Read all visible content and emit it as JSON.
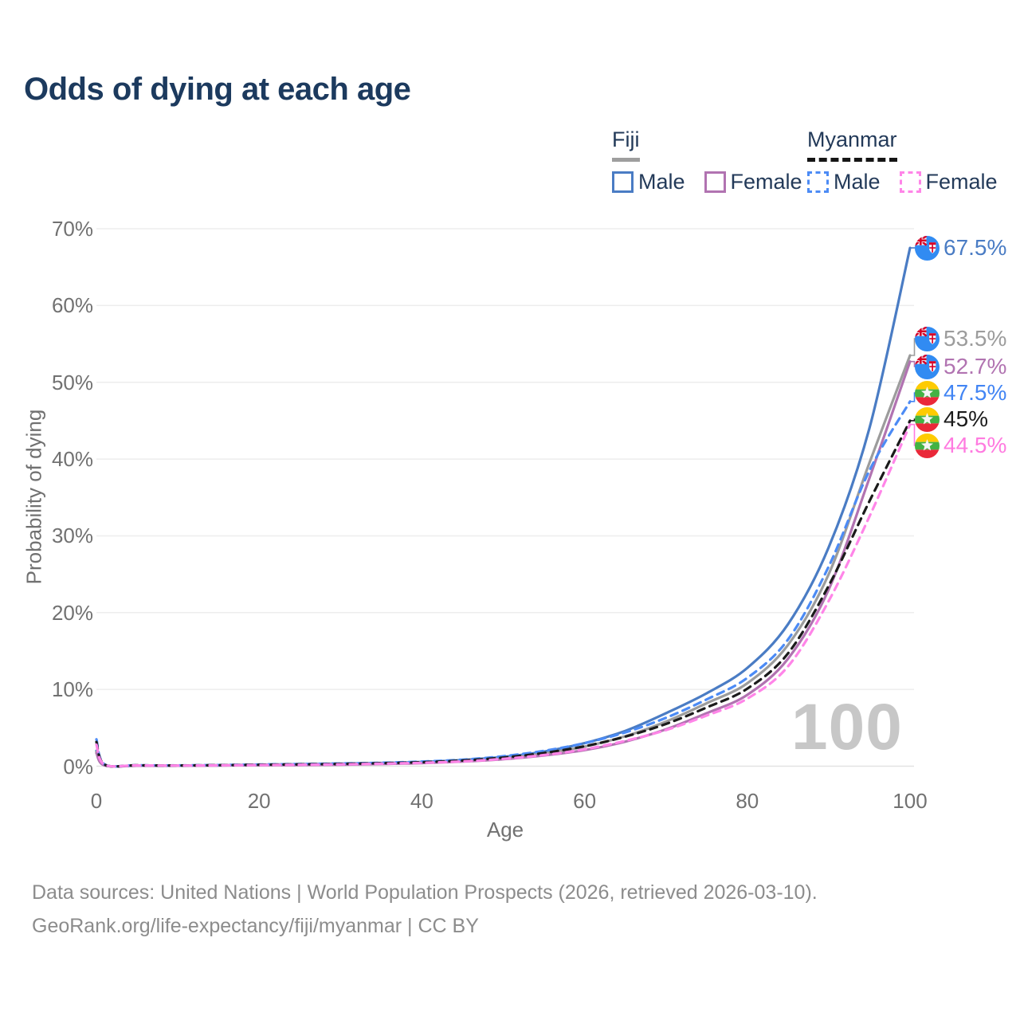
{
  "title": "Odds of dying at each age",
  "legend": {
    "groups": [
      {
        "name": "Fiji",
        "line_style": "solid",
        "underline_color": "#9e9e9e",
        "items": [
          {
            "label": "Male",
            "color": "#4a7cc4"
          },
          {
            "label": "Female",
            "color": "#b173b1"
          }
        ]
      },
      {
        "name": "Myanmar",
        "line_style": "dashed",
        "underline_color": "#151515",
        "items": [
          {
            "label": "Male",
            "color": "#4c8bf5"
          },
          {
            "label": "Female",
            "color": "#ff85e8"
          }
        ]
      }
    ]
  },
  "axes": {
    "y_label": "Probability of dying",
    "x_label": "Age",
    "y_ticks": [
      "0%",
      "10%",
      "20%",
      "30%",
      "40%",
      "50%",
      "60%",
      "70%"
    ],
    "x_ticks": [
      "0",
      "20",
      "40",
      "60",
      "80",
      "100"
    ]
  },
  "watermark": "100",
  "end_labels": [
    {
      "series": "fiji_male",
      "flag": "fiji-flag-icon",
      "text": "67.5%",
      "value": 67.5,
      "color": "#4a7cc4"
    },
    {
      "series": "fiji_both",
      "flag": "fiji-flag-icon",
      "text": "53.5%",
      "value": 53.5,
      "color": "#9c9c9c"
    },
    {
      "series": "fiji_female",
      "flag": "fiji-flag-icon",
      "text": "52.7%",
      "value": 52.7,
      "color": "#b173b1"
    },
    {
      "series": "myanmar_male",
      "flag": "myanmar-flag-icon",
      "text": "47.5%",
      "value": 47.5,
      "color": "#4285f4"
    },
    {
      "series": "myanmar_both",
      "flag": "myanmar-flag-icon",
      "text": "45%",
      "value": 45.0,
      "color": "#1b1b1b"
    },
    {
      "series": "myanmar_female",
      "flag": "myanmar-flag-icon",
      "text": "44.5%",
      "value": 44.5,
      "color": "#ff7be0"
    }
  ],
  "footer": {
    "line1": "Data sources: United Nations | World Population Prospects (2026, retrieved 2026-03-10).",
    "line2": "GeoRank.org/life-expectancy/fiji/myanmar | CC BY"
  },
  "chart_data": {
    "type": "line",
    "title": "Odds of dying at each age",
    "xlabel": "Age",
    "ylabel": "Probability of dying",
    "xlim": [
      0,
      100
    ],
    "ylim": [
      0,
      70
    ],
    "y_unit": "%",
    "grid": "horizontal",
    "legend_position": "top-right",
    "series": [
      {
        "name": "Fiji Male",
        "country": "Fiji",
        "sex": "male",
        "style": "solid",
        "color": "#4a7cc4",
        "points": [
          [
            0,
            2.0
          ],
          [
            1,
            0.12
          ],
          [
            5,
            0.08
          ],
          [
            10,
            0.08
          ],
          [
            15,
            0.12
          ],
          [
            20,
            0.2
          ],
          [
            25,
            0.25
          ],
          [
            30,
            0.32
          ],
          [
            35,
            0.42
          ],
          [
            40,
            0.55
          ],
          [
            45,
            0.8
          ],
          [
            50,
            1.2
          ],
          [
            55,
            1.9
          ],
          [
            60,
            3.0
          ],
          [
            65,
            4.6
          ],
          [
            70,
            6.9
          ],
          [
            75,
            9.5
          ],
          [
            80,
            12.8
          ],
          [
            85,
            18.5
          ],
          [
            90,
            28.5
          ],
          [
            95,
            44.0
          ],
          [
            100,
            67.5
          ]
        ]
      },
      {
        "name": "Fiji Both sexes",
        "country": "Fiji",
        "sex": "both",
        "style": "solid",
        "color": "#9c9c9c",
        "points": [
          [
            0,
            1.85
          ],
          [
            1,
            0.11
          ],
          [
            5,
            0.07
          ],
          [
            10,
            0.07
          ],
          [
            15,
            0.1
          ],
          [
            20,
            0.16
          ],
          [
            25,
            0.2
          ],
          [
            30,
            0.26
          ],
          [
            35,
            0.35
          ],
          [
            40,
            0.48
          ],
          [
            45,
            0.7
          ],
          [
            50,
            1.05
          ],
          [
            55,
            1.65
          ],
          [
            60,
            2.55
          ],
          [
            65,
            3.9
          ],
          [
            70,
            5.8
          ],
          [
            75,
            8.2
          ],
          [
            80,
            10.8
          ],
          [
            85,
            15.8
          ],
          [
            90,
            25.0
          ],
          [
            95,
            39.5
          ],
          [
            100,
            53.5
          ]
        ]
      },
      {
        "name": "Fiji Female",
        "country": "Fiji",
        "sex": "female",
        "style": "solid",
        "color": "#b173b1",
        "points": [
          [
            0,
            1.7
          ],
          [
            1,
            0.1
          ],
          [
            5,
            0.06
          ],
          [
            10,
            0.06
          ],
          [
            15,
            0.08
          ],
          [
            20,
            0.12
          ],
          [
            25,
            0.15
          ],
          [
            30,
            0.2
          ],
          [
            35,
            0.28
          ],
          [
            40,
            0.4
          ],
          [
            45,
            0.6
          ],
          [
            50,
            0.9
          ],
          [
            55,
            1.4
          ],
          [
            60,
            2.1
          ],
          [
            65,
            3.2
          ],
          [
            70,
            4.8
          ],
          [
            75,
            6.9
          ],
          [
            80,
            9.3
          ],
          [
            85,
            14.0
          ],
          [
            90,
            23.0
          ],
          [
            95,
            37.5
          ],
          [
            100,
            52.7
          ]
        ]
      },
      {
        "name": "Myanmar Male",
        "country": "Myanmar",
        "sex": "male",
        "style": "dashed",
        "color": "#4c8bf5",
        "points": [
          [
            0,
            3.5
          ],
          [
            1,
            0.25
          ],
          [
            5,
            0.12
          ],
          [
            10,
            0.1
          ],
          [
            15,
            0.15
          ],
          [
            20,
            0.22
          ],
          [
            25,
            0.28
          ],
          [
            30,
            0.35
          ],
          [
            35,
            0.45
          ],
          [
            40,
            0.6
          ],
          [
            45,
            0.85
          ],
          [
            50,
            1.3
          ],
          [
            55,
            2.0
          ],
          [
            60,
            3.0
          ],
          [
            65,
            4.4
          ],
          [
            70,
            6.3
          ],
          [
            75,
            8.7
          ],
          [
            80,
            11.5
          ],
          [
            85,
            16.5
          ],
          [
            90,
            26.0
          ],
          [
            95,
            38.5
          ],
          [
            100,
            47.5
          ]
        ]
      },
      {
        "name": "Myanmar Both sexes",
        "country": "Myanmar",
        "sex": "both",
        "style": "dashed",
        "color": "#1b1b1b",
        "points": [
          [
            0,
            3.15
          ],
          [
            1,
            0.22
          ],
          [
            5,
            0.11
          ],
          [
            10,
            0.09
          ],
          [
            15,
            0.13
          ],
          [
            20,
            0.19
          ],
          [
            25,
            0.24
          ],
          [
            30,
            0.3
          ],
          [
            35,
            0.39
          ],
          [
            40,
            0.52
          ],
          [
            45,
            0.74
          ],
          [
            50,
            1.12
          ],
          [
            55,
            1.72
          ],
          [
            60,
            2.6
          ],
          [
            65,
            3.85
          ],
          [
            70,
            5.5
          ],
          [
            75,
            7.65
          ],
          [
            80,
            10.1
          ],
          [
            85,
            14.7
          ],
          [
            90,
            23.5
          ],
          [
            95,
            34.5
          ],
          [
            100,
            45.0
          ]
        ]
      },
      {
        "name": "Myanmar Female",
        "country": "Myanmar",
        "sex": "female",
        "style": "dashed",
        "color": "#ff85e8",
        "points": [
          [
            0,
            2.8
          ],
          [
            1,
            0.2
          ],
          [
            5,
            0.1
          ],
          [
            10,
            0.08
          ],
          [
            15,
            0.11
          ],
          [
            20,
            0.15
          ],
          [
            25,
            0.19
          ],
          [
            30,
            0.24
          ],
          [
            35,
            0.32
          ],
          [
            40,
            0.44
          ],
          [
            45,
            0.62
          ],
          [
            50,
            0.95
          ],
          [
            55,
            1.45
          ],
          [
            60,
            2.2
          ],
          [
            65,
            3.3
          ],
          [
            70,
            4.7
          ],
          [
            75,
            6.6
          ],
          [
            80,
            8.8
          ],
          [
            85,
            13.0
          ],
          [
            90,
            21.5
          ],
          [
            95,
            32.5
          ],
          [
            100,
            44.5
          ]
        ]
      }
    ],
    "end_annotations": [
      {
        "series": "Fiji Male",
        "label": "67.5%"
      },
      {
        "series": "Fiji Both sexes",
        "label": "53.5%"
      },
      {
        "series": "Fiji Female",
        "label": "52.7%"
      },
      {
        "series": "Myanmar Male",
        "label": "47.5%"
      },
      {
        "series": "Myanmar Both sexes",
        "label": "45%"
      },
      {
        "series": "Myanmar Female",
        "label": "44.5%"
      }
    ]
  }
}
